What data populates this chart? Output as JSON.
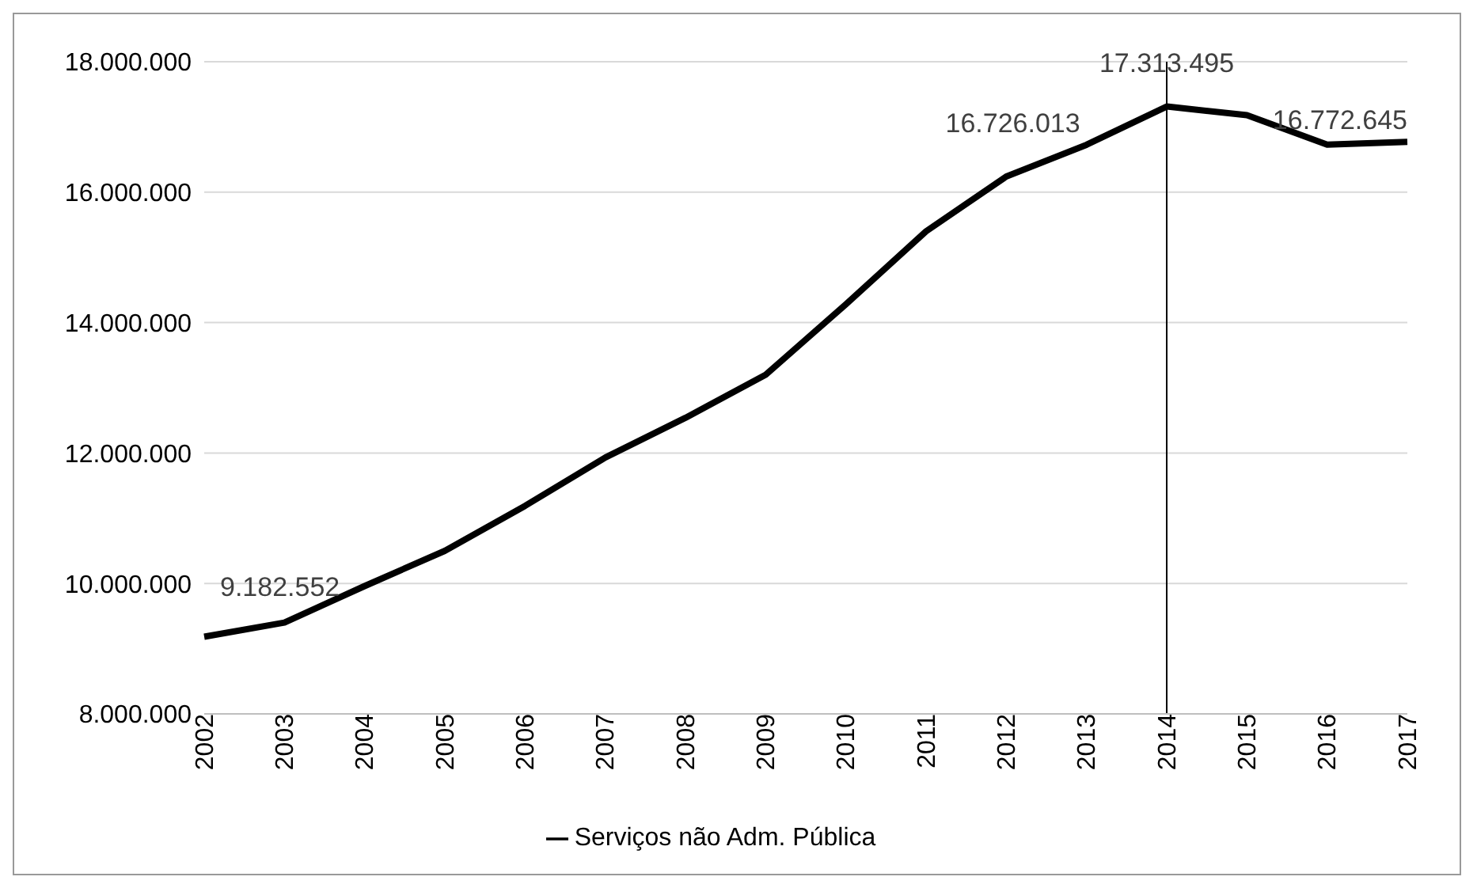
{
  "chart_data": {
    "type": "line",
    "categories": [
      "2002",
      "2003",
      "2004",
      "2005",
      "2006",
      "2007",
      "2008",
      "2009",
      "2010",
      "2011",
      "2012",
      "2013",
      "2014",
      "2015",
      "2016",
      "2017"
    ],
    "series": [
      {
        "name": "Serviços não Adm. Pública",
        "color": "#000000",
        "values": [
          9182552,
          9400000,
          9960000,
          10500000,
          11190000,
          11930000,
          12540000,
          13200000,
          14280000,
          15400000,
          16240000,
          16726013,
          17313495,
          17180000,
          16730000,
          16772645
        ],
        "value_labels": [
          "9.182.552",
          null,
          null,
          null,
          null,
          null,
          null,
          null,
          null,
          null,
          null,
          "16.726.013",
          "17.313.495",
          null,
          null,
          "16.772.645"
        ]
      }
    ],
    "ylim": [
      8000000,
      18000000
    ],
    "yticks": [
      {
        "value": 8000000,
        "label": "8.000.000"
      },
      {
        "value": 10000000,
        "label": "10.000.000"
      },
      {
        "value": 12000000,
        "label": "12.000.000"
      },
      {
        "value": 14000000,
        "label": "14.000.000"
      },
      {
        "value": 16000000,
        "label": "16.000.000"
      },
      {
        "value": 18000000,
        "label": "18.000.000"
      }
    ],
    "ref_lines": [
      {
        "axis": "x",
        "value": "2014",
        "color": "#000000"
      }
    ],
    "grid": "y",
    "legend": "bottom",
    "marker": "none",
    "line_style": "solid"
  }
}
